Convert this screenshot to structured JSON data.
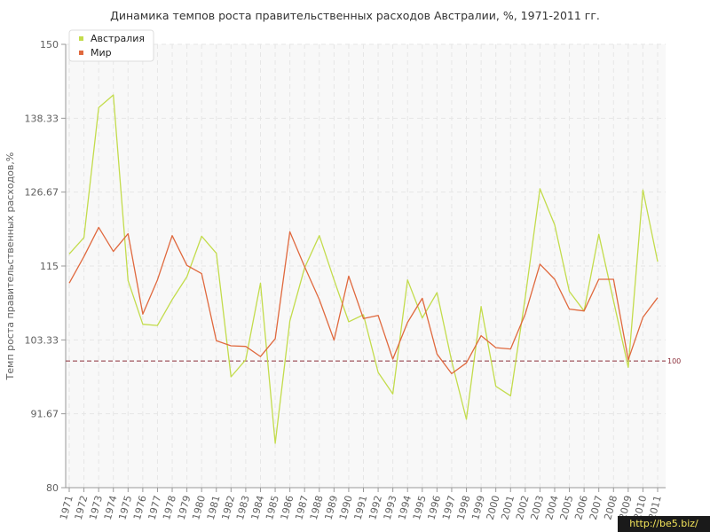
{
  "chart_data": {
    "type": "line",
    "title": "Динамика темпов роста правительственных расходов Австралии, %, 1971-2011 гг.",
    "ylabel": "Темп роста правительственных расходов,%",
    "xlabel": "",
    "ylim": [
      80,
      150
    ],
    "yticks": [
      "80",
      "91.67",
      "103.33",
      "115",
      "126.67",
      "138.33",
      "150"
    ],
    "ytick_values": [
      80,
      91.67,
      103.33,
      115,
      126.67,
      138.33,
      150
    ],
    "x": [
      "1971",
      "1972",
      "1973",
      "1974",
      "1975",
      "1976",
      "1977",
      "1978",
      "1979",
      "1980",
      "1981",
      "1982",
      "1983",
      "1984",
      "1985",
      "1986",
      "1987",
      "1988",
      "1989",
      "1990",
      "1991",
      "1992",
      "1993",
      "1994",
      "1995",
      "1996",
      "1997",
      "1998",
      "1999",
      "2000",
      "2001",
      "2002",
      "2003",
      "2004",
      "2005",
      "2006",
      "2007",
      "2008",
      "2009",
      "2010",
      "2011"
    ],
    "series": [
      {
        "name": "Австралия",
        "color": "#c3dc4c",
        "values": [
          116.9,
          119.5,
          140.0,
          142.0,
          112.7,
          105.8,
          105.6,
          109.7,
          113.3,
          119.7,
          117.0,
          97.5,
          100.2,
          112.3,
          87.0,
          106.3,
          114.7,
          119.8,
          112.8,
          106.2,
          107.3,
          98.2,
          94.8,
          112.8,
          106.8,
          110.8,
          100.0,
          90.8,
          108.6,
          96.0,
          94.5,
          110.0,
          127.2,
          121.5,
          111.0,
          107.9,
          120.0,
          109.5,
          99.0,
          127.0,
          115.7
        ]
      },
      {
        "name": "Мир",
        "color": "#e0693e",
        "values": [
          112.3,
          116.5,
          121.1,
          117.3,
          120.1,
          107.4,
          112.8,
          119.8,
          115.1,
          113.8,
          103.2,
          102.4,
          102.3,
          100.7,
          103.5,
          120.4,
          114.9,
          109.7,
          103.3,
          113.4,
          106.7,
          107.2,
          100.3,
          106.1,
          109.9,
          101.1,
          98.0,
          99.7,
          104.0,
          102.1,
          101.9,
          107.4,
          115.3,
          112.9,
          108.2,
          107.9,
          112.9,
          112.9,
          100.2,
          106.9,
          110.0
        ]
      }
    ],
    "reference_line": {
      "value": 100,
      "label": "100",
      "color": "#8b2e3a"
    },
    "legend_position": "top-left",
    "grid": true
  },
  "watermark": "http://be5.biz/"
}
